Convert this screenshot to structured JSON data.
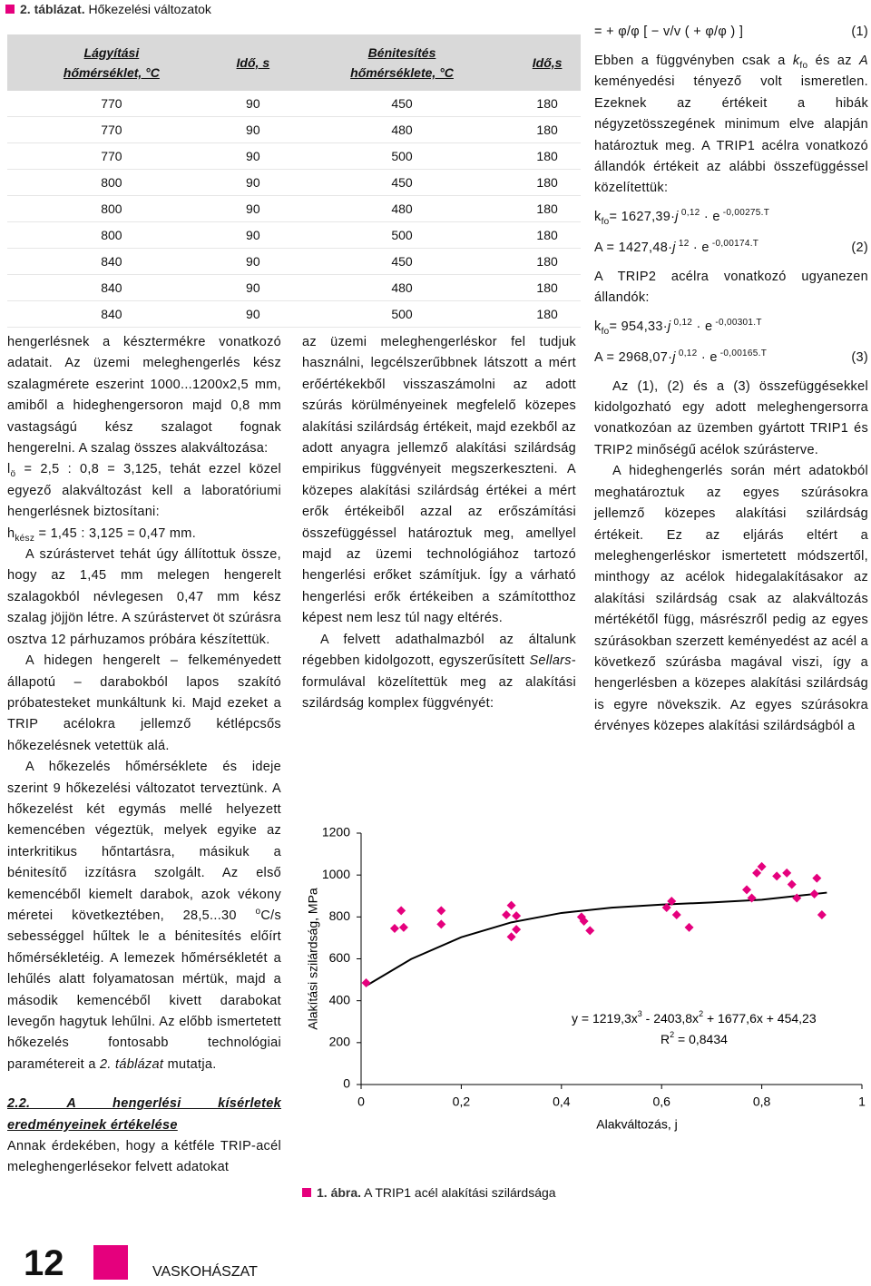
{
  "table": {
    "caption_label": "2. táblázat.",
    "caption_title": "Hőkezelési változatok",
    "header": [
      [
        "Lágyítási",
        "hőmérséklet, °C"
      ],
      [
        "Idő, s"
      ],
      [
        "Bénitesítés",
        "hőmérséklete, °C"
      ],
      [
        "Idő,s"
      ]
    ],
    "rows": [
      [
        770,
        90,
        450,
        180
      ],
      [
        770,
        90,
        480,
        180
      ],
      [
        770,
        90,
        500,
        180
      ],
      [
        800,
        90,
        450,
        180
      ],
      [
        800,
        90,
        480,
        180
      ],
      [
        800,
        90,
        500,
        180
      ],
      [
        840,
        90,
        450,
        180
      ],
      [
        840,
        90,
        480,
        180
      ],
      [
        840,
        90,
        500,
        180
      ]
    ]
  },
  "left_column": [
    {
      "indent": false,
      "runs": [
        {
          "t": "hengerlésnek a késztermékre vonatkozó adatait. Az üzemi meleghengerlés kész szalagmérete eszerint 1000...1200x2,5 mm, amiből a hideghengersoron majd 0,8 mm vastagságú kész szalagot fognak hengerelni. A szalag összes alakváltozása:"
        }
      ]
    },
    {
      "indent": false,
      "runs": [
        {
          "t": "l"
        },
        {
          "sub": "ö"
        },
        {
          "t": " = 2,5 : 0,8 = 3,125, tehát ezzel közel egyező alakváltozást kell a laboratóriumi hengerlésnek biztosítani:"
        }
      ]
    },
    {
      "indent": false,
      "runs": [
        {
          "t": "h"
        },
        {
          "sub": "kész"
        },
        {
          "t": " = 1,45 : 3,125 = 0,47 mm."
        }
      ]
    },
    {
      "indent": true,
      "runs": [
        {
          "t": "A szúrástervet tehát úgy állítottuk össze, hogy az 1,45 mm melegen hengerelt szalagokból névlegesen 0,47 mm kész szalag jöjjön létre. A szúrástervet öt szúrásra osztva 12 párhuzamos próbára készítettük."
        }
      ]
    },
    {
      "indent": true,
      "runs": [
        {
          "t": "A hidegen hengerelt – felkeményedett állapotú – darabokból lapos szakító próbatesteket munkáltunk ki. Majd ezeket a TRIP acélokra jellemző kétlépcsős hőkezelésnek vetettük alá."
        }
      ]
    },
    {
      "indent": true,
      "runs": [
        {
          "t": "A hőkezelés hőmérséklete és ideje szerint 9 hőkezelési változatot terveztünk. A hőkezelést két egymás mellé helyezett kemencében végeztük, melyek egyike az interkritikus hőntartásra, másikuk a bénitesítő izzításra szolgált. Az első kemencéből kiemelt darabok, azok vékony méretei következtében, 28,5...30 "
        },
        {
          "sup": "o"
        },
        {
          "t": "C/s sebességgel hűltek le a bénitesítés előírt hőmérsékletéig. A lemezek hőmérsékletét a lehűlés alatt folyamatosan mértük, majd a második kemencéből kivett darabokat levegőn hagytuk lehűlni. Az előbb ismertetett hőkezelés fontosabb technológiai paramétereit a "
        },
        {
          "i": "2. táblázat"
        },
        {
          "t": " mutatja."
        }
      ]
    },
    {
      "heading": "2.2. A hengerlési kísérletek eredményeinek értékelése"
    },
    {
      "indent": false,
      "runs": [
        {
          "t": "Annak érdekében, hogy a kétféle TRIP-acél meleghengerlésekor felvett adatokat"
        }
      ]
    }
  ],
  "middle_column": [
    {
      "indent": false,
      "runs": [
        {
          "t": "az üzemi meleghengerléskor fel tudjuk használni, legcélszerűbbnek látszott a mért erőértékekből visszaszámolni az adott szúrás körülményeinek megfelelő közepes alakítási szilárdság értékeit, majd ezekből az adott anyagra jellemző alakítási szilárdság empirikus függvényeit megszerkeszteni. A közepes alakítási szilárdság értékei a mért erők értékeiből azzal az erőszámítási összefüggéssel határoztuk meg, amellyel majd az üzemi technológiához tartozó hengerlési erőket számítjuk. Így a várható hengerlési erők értékeiben a számítotthoz képest nem lesz túl nagy eltérés."
        }
      ]
    },
    {
      "indent": true,
      "runs": [
        {
          "t": "A felvett adathalmazból az általunk régebben kidolgozott, egyszerűsített "
        },
        {
          "i": "Sellars"
        },
        {
          "t": "-formulával közelítettük meg az alakítási szilárdság komplex függvényét:"
        }
      ]
    }
  ],
  "right_column": [
    {
      "formula": [
        {
          "t": "=  +  φ/φ  [  −  v/v  (  +  φ/φ  )  ]"
        }
      ],
      "number": "(1)"
    },
    {
      "indent": false,
      "runs": [
        {
          "t": "Ebben a függvényben csak a "
        },
        {
          "i": "k"
        },
        {
          "sub": "fo"
        },
        {
          "t": " és az "
        },
        {
          "i": "A"
        },
        {
          "t": " keményedési tényező volt ismeretlen. Ezeknek az értékeit a hibák négyzetösszegének minimum elve alapján határoztuk meg. A TRIP1 acélra vonatkozó állandók értékeit az alábbi összefüggéssel közelítettük:"
        }
      ]
    },
    {
      "formula": [
        {
          "t": "k"
        },
        {
          "sub": "fo"
        },
        {
          "t": "= 1627,39·"
        },
        {
          "i": "j"
        },
        {
          "sup": " 0,12"
        },
        {
          "t": " · e"
        },
        {
          "sup": " -0,00275.T"
        }
      ]
    },
    {
      "formula": [
        {
          "t": "A = 1427,48·"
        },
        {
          "i": "j"
        },
        {
          "sup": " 12"
        },
        {
          "t": " · e"
        },
        {
          "sup": " -0,00174.T"
        }
      ],
      "number": "(2)"
    },
    {
      "indent": false,
      "runs": [
        {
          "t": "A TRIP2 acélra vonatkozó ugyanezen állandók:"
        }
      ]
    },
    {
      "formula": [
        {
          "t": "k"
        },
        {
          "sub": "fo"
        },
        {
          "t": "= 954,33·"
        },
        {
          "i": "j"
        },
        {
          "sup": " 0,12"
        },
        {
          "t": " · e"
        },
        {
          "sup": " -0,00301.T"
        }
      ]
    },
    {
      "formula": [
        {
          "t": "A = 2968,07·"
        },
        {
          "i": "j"
        },
        {
          "sup": " 0,12"
        },
        {
          "t": " · e"
        },
        {
          "sup": " -0,00165.T"
        }
      ],
      "number": "(3)"
    },
    {
      "indent": true,
      "runs": [
        {
          "t": "Az (1), (2) és a (3) összefüggésekkel kidolgozható egy adott meleghengersorra vonatkozóan az üzemben gyártott TRIP1 és TRIP2 minőségű acélok szúrásterve."
        }
      ]
    },
    {
      "indent": true,
      "runs": [
        {
          "t": "A hideghengerlés során mért adatokból meghatároztuk az egyes szúrásokra jellemző közepes alakítási szilárdság értékeit. Ez az eljárás eltért a meleghengerléskor ismertetett módszertől, minthogy az acélok hidegalakításakor az alakítási szilárdság csak az alakváltozás mértékétől függ, másrészről pedig az egyes szúrásokban szerzett keményedést az acél a következő szúrásba magával viszi, így a hengerlésben a közepes alakítási szilárdság is egyre növekszik. Az egyes szúrásokra érvényes közepes alakítási szilárdságból a"
        }
      ]
    }
  ],
  "chart_data": {
    "type": "scatter",
    "color": "#e5007d",
    "x": [
      0.01,
      0.067,
      0.08,
      0.085,
      0.16,
      0.16,
      0.29,
      0.3,
      0.31,
      0.31,
      0.3,
      0.44,
      0.445,
      0.457,
      0.61,
      0.62,
      0.63,
      0.655,
      0.77,
      0.78,
      0.79,
      0.8,
      0.83,
      0.85,
      0.86,
      0.87,
      0.905,
      0.91,
      0.92
    ],
    "values": [
      485,
      745,
      830,
      750,
      830,
      765,
      810,
      855,
      805,
      740,
      705,
      800,
      780,
      735,
      845,
      875,
      810,
      750,
      930,
      890,
      1010,
      1040,
      995,
      1010,
      955,
      890,
      910,
      985,
      810
    ],
    "trendline": {
      "color": "#000000",
      "x": [
        0.01,
        0.1,
        0.2,
        0.3,
        0.4,
        0.5,
        0.6,
        0.7,
        0.8,
        0.93
      ],
      "values": [
        471,
        599,
        703,
        774,
        819,
        844,
        859,
        869,
        882,
        916
      ]
    },
    "xlim": [
      0,
      1
    ],
    "ylim": [
      0,
      1200
    ],
    "xticks": [
      0,
      {
        "value": 0.2,
        "label": "0,2"
      },
      {
        "value": 0.4,
        "label": "0,4"
      },
      {
        "value": 0.6,
        "label": "0,6"
      },
      {
        "value": 0.8,
        "label": "0,8"
      },
      1
    ],
    "yticks": [
      0,
      200,
      400,
      600,
      800,
      1000,
      1200
    ],
    "xlabel": "Alakváltozás, j",
    "ylabel": "Alakítási szilárdság, MPa",
    "equation": [
      {
        "t": "y = 1219,3x"
      },
      {
        "sup": "3"
      },
      {
        "t": " - 2403,8x"
      },
      {
        "sup": "2"
      },
      {
        "t": " + 1677,6x + 454,23"
      }
    ],
    "r_squared": [
      {
        "t": "R"
      },
      {
        "sup": "2"
      },
      {
        "t": " = 0,8434"
      }
    ]
  },
  "figure_caption": {
    "label": "1. ábra.",
    "title": "A TRIP1 acél alakítási szilárdsága"
  },
  "footer": {
    "page": "12",
    "journal": "VASKOHÁSZAT"
  }
}
